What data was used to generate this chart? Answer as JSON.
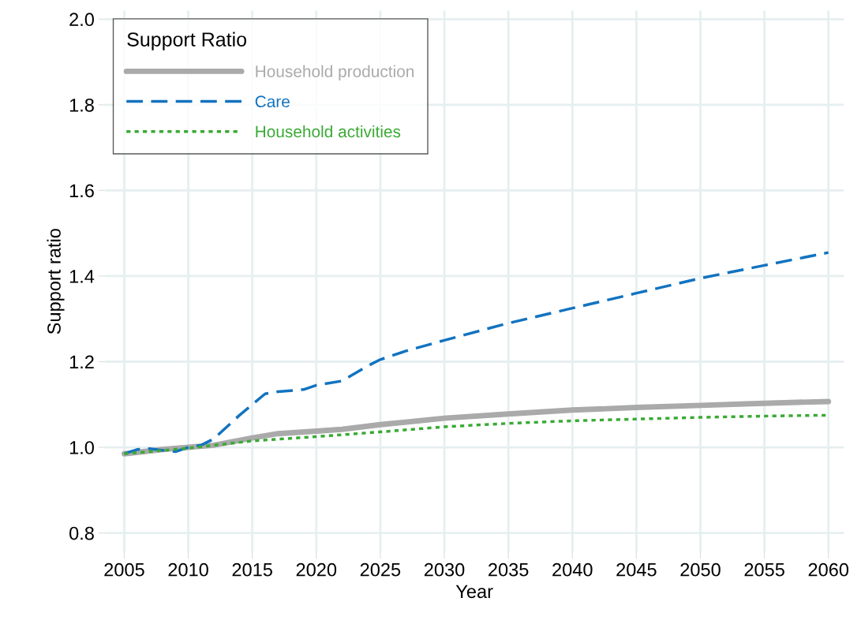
{
  "chart_data": {
    "type": "line",
    "xlabel": "Year",
    "ylabel": "Support ratio",
    "legend_title": "Support Ratio",
    "legend": "top left",
    "grid": true,
    "xlim": [
      2003.5,
      2061.2
    ],
    "xticks": [
      2005,
      2010,
      2015,
      2020,
      2025,
      2030,
      2035,
      2040,
      2045,
      2050,
      2055,
      2060
    ],
    "ylim": [
      0.755,
      2.02
    ],
    "yticks": [
      0.8,
      {
        "value": 1,
        "label": "1.0"
      },
      1.2,
      1.4,
      1.6,
      1.8,
      {
        "value": 2,
        "label": "2.0"
      }
    ],
    "series": [
      {
        "name": "Household production",
        "color": "#aaaaaa",
        "line_style": "solid",
        "x": [
          2005,
          2008,
          2010,
          2012,
          2015,
          2017,
          2020,
          2022,
          2025,
          2030,
          2035,
          2040,
          2045,
          2050,
          2055,
          2060
        ],
        "values": [
          0.985,
          0.995,
          1.0,
          1.005,
          1.022,
          1.032,
          1.038,
          1.042,
          1.053,
          1.068,
          1.078,
          1.087,
          1.093,
          1.098,
          1.103,
          1.107
        ]
      },
      {
        "name": "Care",
        "color": "#1273c0",
        "line_style": "dashed",
        "x": [
          2005,
          2006,
          2007,
          2008,
          2009,
          2010,
          2011,
          2012,
          2014,
          2016,
          2017,
          2019,
          2020,
          2022,
          2024,
          2025,
          2027,
          2030,
          2035,
          2040,
          2045,
          2050,
          2055,
          2060
        ],
        "values": [
          0.985,
          0.995,
          0.997,
          0.993,
          0.99,
          1.0,
          1.005,
          1.02,
          1.075,
          1.125,
          1.13,
          1.135,
          1.145,
          1.155,
          1.19,
          1.205,
          1.225,
          1.25,
          1.29,
          1.325,
          1.36,
          1.395,
          1.425,
          1.455
        ]
      },
      {
        "name": "Household activities",
        "color": "#3aaa35",
        "line_style": "dotted",
        "x": [
          2005,
          2010,
          2015,
          2020,
          2025,
          2030,
          2035,
          2040,
          2045,
          2050,
          2055,
          2060
        ],
        "values": [
          0.985,
          0.998,
          1.015,
          1.025,
          1.036,
          1.048,
          1.056,
          1.062,
          1.066,
          1.07,
          1.073,
          1.075
        ]
      }
    ]
  }
}
